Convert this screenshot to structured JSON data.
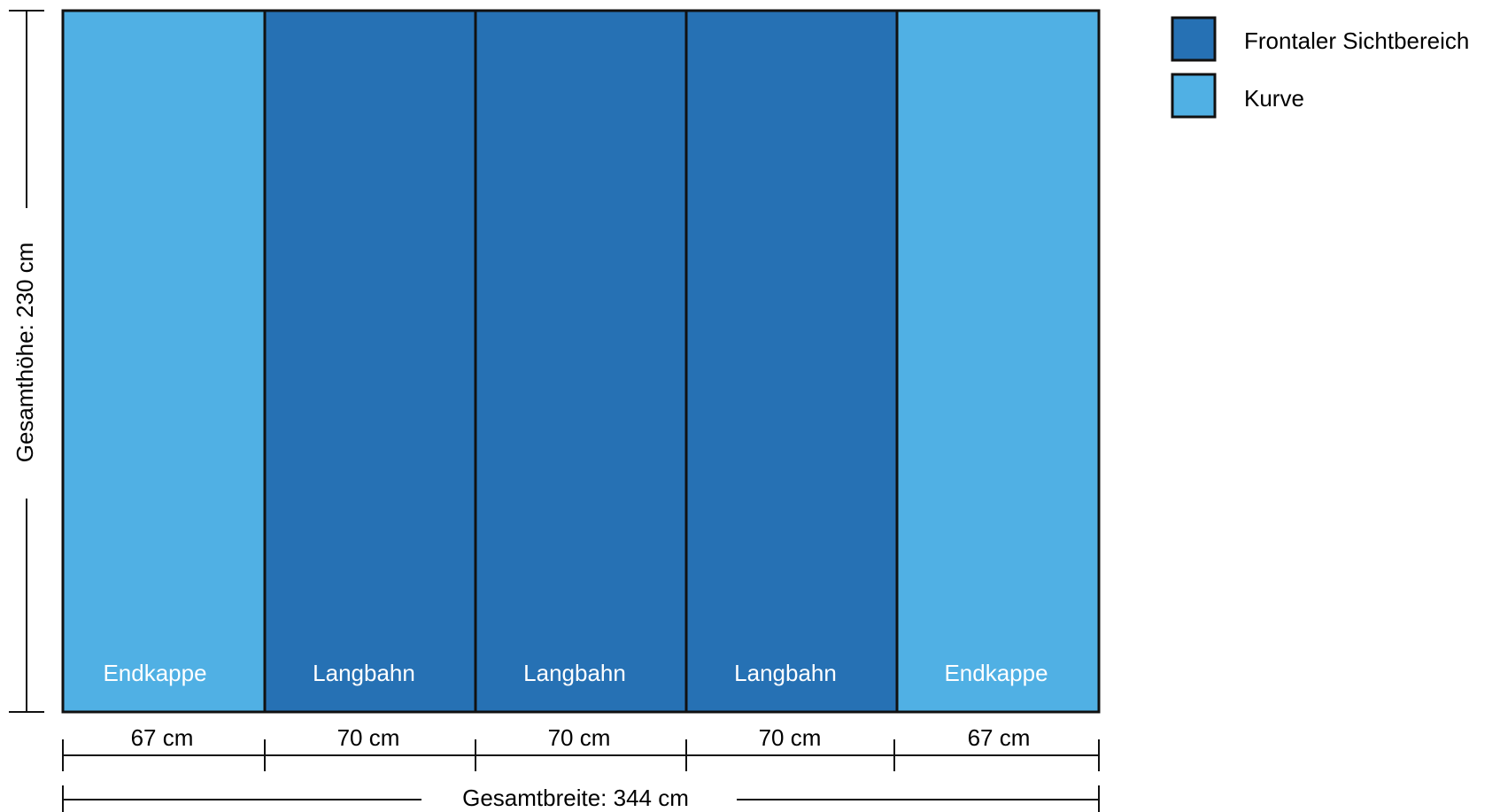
{
  "colors": {
    "front": "#2671b4",
    "curve": "#50b0e4",
    "line": "#111111"
  },
  "panels": [
    {
      "label": "Endkappe",
      "width_label": "67 cm",
      "width_cm": 67,
      "type": "curve"
    },
    {
      "label": "Langbahn",
      "width_label": "70 cm",
      "width_cm": 70,
      "type": "front"
    },
    {
      "label": "Langbahn",
      "width_label": "70 cm",
      "width_cm": 70,
      "type": "front"
    },
    {
      "label": "Langbahn",
      "width_label": "70 cm",
      "width_cm": 70,
      "type": "front"
    },
    {
      "label": "Endkappe",
      "width_label": "67 cm",
      "width_cm": 67,
      "type": "curve"
    }
  ],
  "total_width_label": "Gesamtbreite: 344 cm",
  "total_height_label": "Gesamthöhe: 230 cm",
  "legend": [
    {
      "label": "Frontaler Sichtbereich",
      "type": "front"
    },
    {
      "label": "Kurve",
      "type": "curve"
    }
  ]
}
